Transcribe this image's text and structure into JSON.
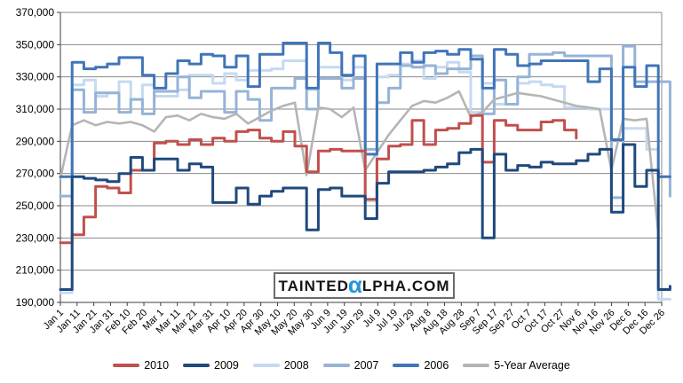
{
  "chart_data": {
    "type": "line",
    "title": "",
    "grid": true,
    "y_axis": {
      "min": 190000,
      "max": 370000,
      "step": 20000,
      "tick_labels": [
        "190,000",
        "210,000",
        "230,000",
        "250,000",
        "270,000",
        "290,000",
        "310,000",
        "330,000",
        "350,000",
        "370,000"
      ]
    },
    "x_axis": {
      "tick_labels": [
        "Jan 1",
        "Jan 11",
        "Jan 21",
        "Jan 31",
        "Feb 10",
        "Feb 20",
        "Mar 1",
        "Mar 11",
        "Mar 21",
        "Mar 31",
        "Apr 10",
        "Apr 20",
        "Apr 30",
        "May 10",
        "May 20",
        "May 30",
        "Jun 9",
        "Jun 19",
        "Jun 29",
        "Jul 9",
        "Jul 19",
        "Jul 29",
        "Aug 8",
        "Aug 18",
        "Aug 28",
        "Sep 7",
        "Sep 17",
        "Sep 27",
        "Oct 7",
        "Oct 17",
        "Oct 27",
        "Nov 6",
        "Nov 16",
        "Nov 26",
        "Dec 6",
        "Dec 16",
        "Dec 26"
      ],
      "tick_interval_days": 10
    },
    "sample_interval_days": 7,
    "legend": {
      "position": "bottom"
    },
    "series": [
      {
        "name": "2010",
        "color": "#C0504D",
        "style": "step",
        "values": [
          227000,
          232000,
          243000,
          262000,
          261000,
          258000,
          272000,
          272000,
          289000,
          290000,
          288000,
          291000,
          288000,
          292000,
          290000,
          296000,
          297000,
          292000,
          290000,
          296000,
          287000,
          271000,
          284000,
          285000,
          284000,
          284000,
          254000,
          279000,
          287000,
          288000,
          303000,
          288000,
          297000,
          298000,
          301000,
          306000,
          277000,
          303000,
          300000,
          297000,
          297000,
          302000,
          303000,
          297000,
          292000
        ]
      },
      {
        "name": "2009",
        "color": "#1F497D",
        "style": "step",
        "values": [
          198000,
          268000,
          267000,
          266000,
          265000,
          270000,
          280000,
          272000,
          279000,
          279000,
          272000,
          276000,
          274000,
          252000,
          252000,
          261000,
          251000,
          256000,
          259000,
          261000,
          261000,
          235000,
          260000,
          261000,
          256000,
          256000,
          242000,
          264000,
          271000,
          271000,
          271000,
          272000,
          274000,
          276000,
          283000,
          285000,
          230000,
          282000,
          272000,
          275000,
          274000,
          277000,
          276000,
          276000,
          278000,
          282000,
          285000,
          246000,
          288000,
          262000,
          272000,
          198000,
          200000
        ]
      },
      {
        "name": "2008",
        "color": "#C5D9F1",
        "style": "step",
        "values": [
          196000,
          325000,
          328000,
          318000,
          320000,
          327000,
          316000,
          325000,
          318000,
          318000,
          322000,
          331000,
          331000,
          326000,
          332000,
          328000,
          334000,
          334000,
          335000,
          340000,
          340000,
          322000,
          336000,
          336000,
          328000,
          336000,
          253000,
          330000,
          331000,
          338000,
          340000,
          329000,
          336000,
          339000,
          333000,
          308000,
          326000,
          313000,
          313000,
          326000,
          327000,
          325000,
          324000,
          311000,
          311000,
          310000,
          310000,
          255000,
          298000,
          298000,
          285000,
          192000,
          192000
        ]
      },
      {
        "name": "2007",
        "color": "#95B3D7",
        "style": "step",
        "values": [
          256000,
          322000,
          308000,
          320000,
          320000,
          308000,
          316000,
          307000,
          321000,
          321000,
          330000,
          317000,
          321000,
          321000,
          308000,
          321000,
          316000,
          303000,
          323000,
          323000,
          329000,
          310000,
          329000,
          329000,
          323000,
          329000,
          285000,
          314000,
          323000,
          337000,
          336000,
          337000,
          332000,
          335000,
          335000,
          343000,
          307000,
          328000,
          313000,
          330000,
          344000,
          344000,
          345000,
          343000,
          343000,
          343000,
          343000,
          255000,
          349000,
          327000,
          327000,
          327000,
          256000
        ]
      },
      {
        "name": "2006",
        "color": "#4075B8",
        "style": "step",
        "values": [
          268000,
          339000,
          335000,
          336000,
          338000,
          342000,
          342000,
          331000,
          323000,
          332000,
          340000,
          338000,
          344000,
          343000,
          336000,
          343000,
          324000,
          344000,
          344000,
          351000,
          351000,
          323000,
          351000,
          345000,
          331000,
          343000,
          282000,
          338000,
          338000,
          345000,
          339000,
          345000,
          346000,
          344000,
          347000,
          341000,
          323000,
          347000,
          344000,
          337000,
          338000,
          340000,
          340000,
          340000,
          340000,
          327000,
          335000,
          291000,
          336000,
          324000,
          337000,
          268000,
          268000
        ]
      },
      {
        "name": "5-Year Average",
        "color": "#B5B5B5",
        "style": "linear",
        "values": [
          267000,
          300000,
          303000,
          300000,
          302000,
          301000,
          302000,
          300000,
          296000,
          305000,
          306000,
          303000,
          307000,
          305000,
          304000,
          307000,
          301000,
          305000,
          309000,
          312000,
          314000,
          269000,
          311000,
          310000,
          305000,
          311000,
          272000,
          283000,
          294000,
          303000,
          312000,
          315000,
          314000,
          317000,
          321000,
          305000,
          308000,
          316000,
          318000,
          320000,
          319000,
          318000,
          316000,
          314000,
          312000,
          311000,
          310000,
          272000,
          304000,
          303000,
          304000,
          233000
        ]
      }
    ],
    "watermark": {
      "prefix": "TAINTED",
      "alpha": "α",
      "suffix": "LPHA.COM",
      "alpha_color": "#2196D8"
    }
  }
}
